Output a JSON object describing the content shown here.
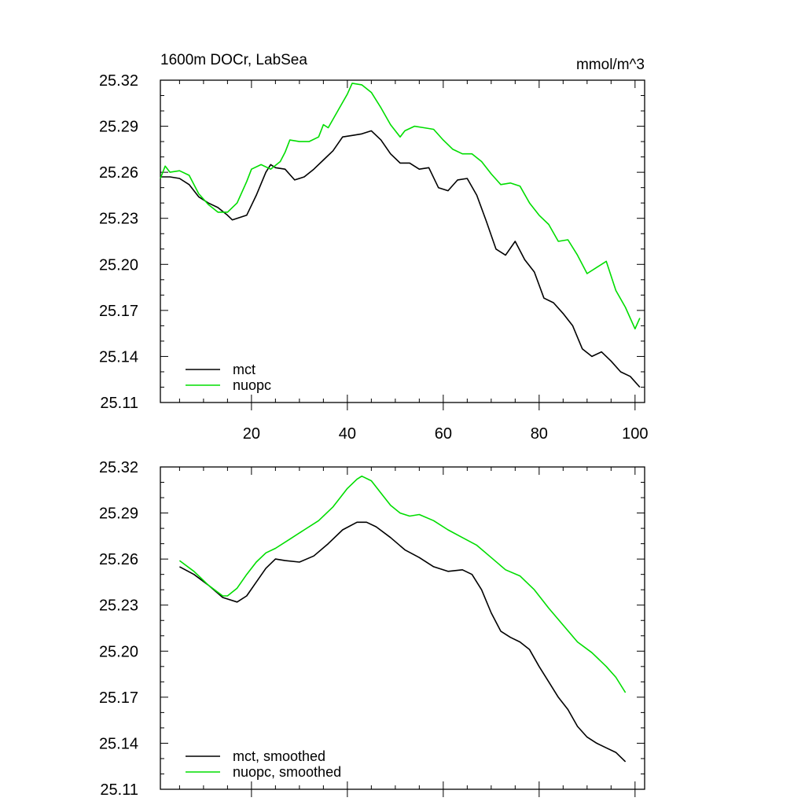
{
  "chart_data": [
    {
      "type": "line",
      "title_left": "1600m DOCr, LabSea",
      "title_right": "mmol/m^3",
      "xlim": [
        1,
        102
      ],
      "ylim": [
        25.11,
        25.32
      ],
      "yticks": [
        25.11,
        25.14,
        25.17,
        25.2,
        25.23,
        25.26,
        25.29,
        25.32
      ],
      "ytick_labels": [
        "25.11",
        "25.14",
        "25.17",
        "25.20",
        "25.23",
        "25.26",
        "25.29",
        "25.32"
      ],
      "xticks": [
        20,
        40,
        60,
        80,
        100
      ],
      "xtick_labels": [
        "20",
        "40",
        "60",
        "80",
        "100"
      ],
      "legend": [
        "mct",
        "nuopc"
      ],
      "series": [
        {
          "name": "mct",
          "color": "#000000",
          "x": [
            1,
            3,
            5,
            7,
            9,
            11,
            13,
            15,
            16,
            17,
            19,
            21,
            23,
            24,
            25,
            27,
            29,
            31,
            33,
            35,
            37,
            39,
            41,
            43,
            45,
            47,
            49,
            51,
            53,
            55,
            57,
            59,
            61,
            63,
            65,
            67,
            69,
            71,
            73,
            75,
            77,
            79,
            81,
            83,
            85,
            87,
            89,
            91,
            93,
            95,
            97,
            99,
            101
          ],
          "values": [
            25.257,
            25.257,
            25.256,
            25.252,
            25.244,
            25.24,
            25.237,
            25.232,
            25.229,
            25.23,
            25.232,
            25.245,
            25.26,
            25.265,
            25.263,
            25.262,
            25.255,
            25.257,
            25.262,
            25.268,
            25.274,
            25.283,
            25.284,
            25.285,
            25.287,
            25.281,
            25.272,
            25.266,
            25.266,
            25.262,
            25.263,
            25.25,
            25.248,
            25.255,
            25.256,
            25.245,
            25.228,
            25.21,
            25.206,
            25.215,
            25.203,
            25.195,
            25.178,
            25.175,
            25.168,
            25.16,
            25.145,
            25.14,
            25.143,
            25.137,
            25.13,
            25.127,
            25.12
          ]
        },
        {
          "name": "nuopc",
          "color": "#00dd00",
          "x": [
            1,
            2,
            3,
            5,
            7,
            9,
            11,
            13,
            15,
            17,
            19,
            20,
            22,
            24,
            26,
            27,
            28,
            30,
            32,
            34,
            35,
            36,
            38,
            40,
            41,
            43,
            45,
            47,
            49,
            51,
            52,
            54,
            56,
            58,
            60,
            62,
            64,
            66,
            68,
            70,
            72,
            74,
            76,
            78,
            80,
            82,
            84,
            86,
            88,
            90,
            92,
            94,
            96,
            98,
            100,
            101
          ],
          "values": [
            25.256,
            25.264,
            25.26,
            25.261,
            25.258,
            25.246,
            25.239,
            25.234,
            25.234,
            25.24,
            25.254,
            25.262,
            25.265,
            25.262,
            25.267,
            25.273,
            25.281,
            25.28,
            25.28,
            25.283,
            25.291,
            25.289,
            25.3,
            25.311,
            25.318,
            25.317,
            25.312,
            25.302,
            25.291,
            25.283,
            25.287,
            25.29,
            25.289,
            25.288,
            25.281,
            25.275,
            25.272,
            25.272,
            25.267,
            25.259,
            25.252,
            25.253,
            25.251,
            25.24,
            25.232,
            25.226,
            25.215,
            25.216,
            25.206,
            25.194,
            25.198,
            25.202,
            25.183,
            25.172,
            25.158,
            25.165
          ]
        }
      ]
    },
    {
      "type": "line",
      "title_left": "",
      "title_right": "",
      "xlim": [
        1,
        102
      ],
      "ylim": [
        25.11,
        25.32
      ],
      "yticks": [
        25.11,
        25.14,
        25.17,
        25.2,
        25.23,
        25.26,
        25.29,
        25.32
      ],
      "ytick_labels": [
        "25.11",
        "25.14",
        "25.17",
        "25.20",
        "25.23",
        "25.26",
        "25.29",
        "25.32"
      ],
      "xticks": [
        20,
        40,
        60,
        80,
        100
      ],
      "xtick_labels": [],
      "legend": [
        "mct, smoothed",
        "nuopc, smoothed"
      ],
      "series": [
        {
          "name": "mct, smoothed",
          "color": "#000000",
          "x": [
            5,
            8,
            11,
            14,
            17,
            19,
            21,
            23,
            25,
            27,
            30,
            33,
            36,
            39,
            42,
            44,
            46,
            49,
            52,
            55,
            58,
            61,
            64,
            66,
            68,
            70,
            72,
            74,
            76,
            78,
            80,
            82,
            84,
            86,
            88,
            90,
            92,
            94,
            96,
            98
          ],
          "values": [
            25.255,
            25.25,
            25.243,
            25.235,
            25.232,
            25.236,
            25.245,
            25.254,
            25.26,
            25.259,
            25.258,
            25.262,
            25.27,
            25.279,
            25.284,
            25.284,
            25.281,
            25.274,
            25.266,
            25.261,
            25.255,
            25.252,
            25.253,
            25.25,
            25.24,
            25.225,
            25.213,
            25.209,
            25.206,
            25.201,
            25.19,
            25.18,
            25.17,
            25.162,
            25.151,
            25.144,
            25.14,
            25.137,
            25.134,
            25.128
          ]
        },
        {
          "name": "nuopc, smoothed",
          "color": "#00dd00",
          "x": [
            5,
            8,
            11,
            14,
            15,
            17,
            19,
            21,
            23,
            25,
            28,
            31,
            34,
            37,
            40,
            42,
            43,
            45,
            47,
            49,
            51,
            53,
            55,
            58,
            61,
            64,
            67,
            70,
            73,
            76,
            79,
            82,
            85,
            88,
            91,
            94,
            96,
            98
          ],
          "values": [
            25.259,
            25.252,
            25.243,
            25.236,
            25.236,
            25.241,
            25.25,
            25.258,
            25.264,
            25.267,
            25.273,
            25.279,
            25.285,
            25.294,
            25.306,
            25.312,
            25.314,
            25.311,
            25.303,
            25.295,
            25.29,
            25.288,
            25.289,
            25.285,
            25.279,
            25.274,
            25.269,
            25.261,
            25.253,
            25.249,
            25.24,
            25.228,
            25.217,
            25.206,
            25.199,
            25.19,
            25.183,
            25.173
          ]
        }
      ]
    }
  ]
}
